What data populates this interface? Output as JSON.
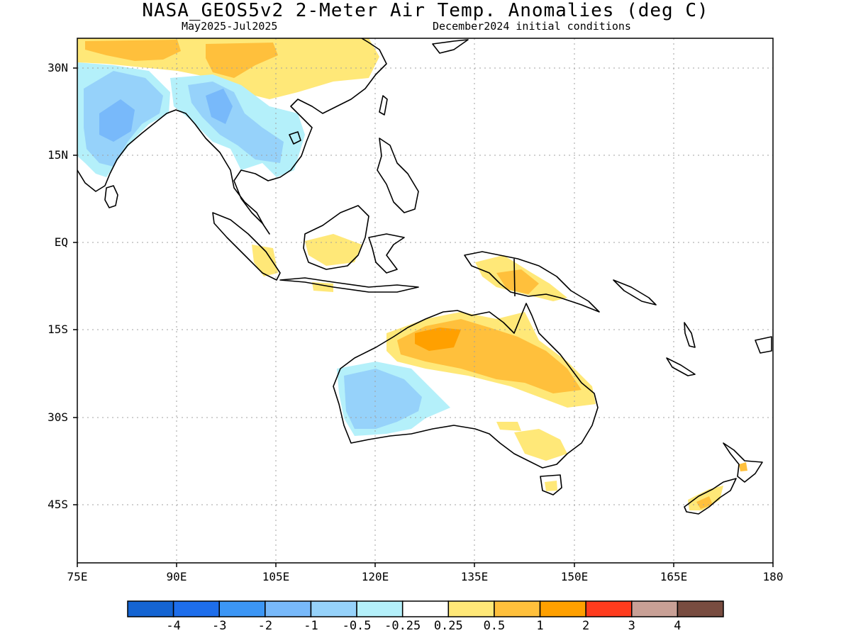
{
  "header": {
    "title": "NASA_GEOS5v2 2-Meter Air Temp. Anomalies (deg C)",
    "period": "May2025-Jul2025",
    "init": "December2024 initial conditions"
  },
  "axes": {
    "lat_labels": [
      "30N",
      "15N",
      "EQ",
      "15S",
      "30S",
      "45S"
    ],
    "lon_labels": [
      "75E",
      "90E",
      "105E",
      "120E",
      "135E",
      "150E",
      "165E",
      "180"
    ]
  },
  "colorbar": {
    "colors": [
      "#1464d2",
      "#1e6eeb",
      "#3c96f5",
      "#78b9fa",
      "#96d2fa",
      "#b4f0fa",
      "#ffffff",
      "#ffe878",
      "#ffc03c",
      "#ffa000",
      "#ff3c1e",
      "#c8a096",
      "#784c40"
    ],
    "labels": [
      "-4",
      "-3",
      "-2",
      "-1",
      "-0.5",
      "-0.25",
      "0.25",
      "0.5",
      "1",
      "2",
      "3",
      "4"
    ]
  }
}
